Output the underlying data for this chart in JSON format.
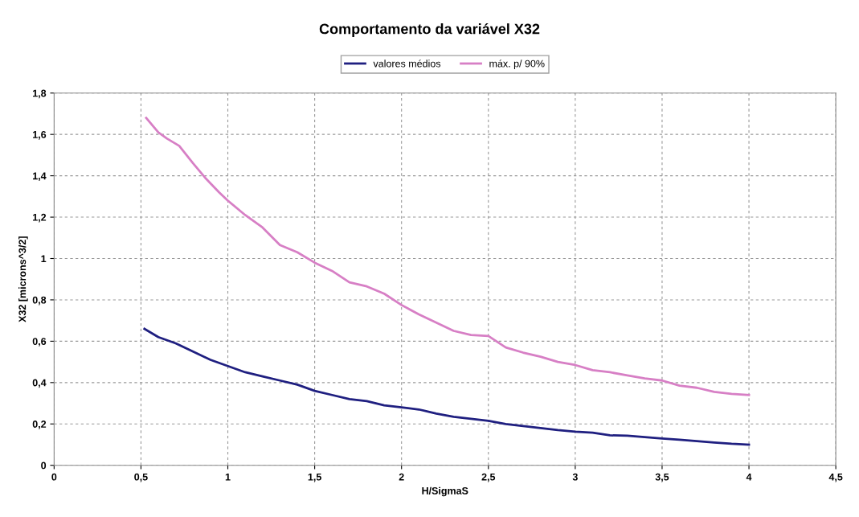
{
  "chart_data": {
    "type": "line",
    "title": "Comportamento da variável X32",
    "xlabel": "H/SigmaS",
    "ylabel": "X32 [microns^3/2]",
    "xlim": [
      0,
      4.5
    ],
    "xticks": [
      0,
      {
        "value": 0.5,
        "label": "0,5"
      },
      1,
      {
        "value": 1.5,
        "label": "1,5"
      },
      2,
      {
        "value": 2.5,
        "label": "2,5"
      },
      3,
      {
        "value": 3.5,
        "label": "3,5"
      },
      4,
      {
        "value": 4.5,
        "label": "4,5"
      }
    ],
    "ylim": [
      0,
      1.8
    ],
    "yticks": [
      0,
      {
        "value": 0.2,
        "label": "0,2"
      },
      {
        "value": 0.4,
        "label": "0,4"
      },
      {
        "value": 0.6,
        "label": "0,6"
      },
      {
        "value": 0.8,
        "label": "0,8"
      },
      1,
      {
        "value": 1.2,
        "label": "1,2"
      },
      {
        "value": 1.4,
        "label": "1,4"
      },
      {
        "value": 1.6,
        "label": "1,6"
      },
      {
        "value": 1.8,
        "label": "1,8"
      }
    ],
    "grid": true,
    "legend": "top",
    "marker": "none",
    "line_style": "solid",
    "series": [
      {
        "name": "valores médios",
        "color": "#1f1f80",
        "x": [
          0.52,
          0.6,
          0.7,
          0.8,
          0.9,
          1.0,
          1.1,
          1.2,
          1.3,
          1.4,
          1.5,
          1.6,
          1.7,
          1.8,
          1.9,
          2.0,
          2.1,
          2.2,
          2.3,
          2.4,
          2.5,
          2.6,
          2.7,
          2.8,
          2.9,
          3.0,
          3.1,
          3.2,
          3.3,
          3.4,
          3.5,
          3.6,
          3.7,
          3.8,
          3.9,
          4.0
        ],
        "values": [
          0.66,
          0.62,
          0.59,
          0.55,
          0.51,
          0.48,
          0.45,
          0.43,
          0.41,
          0.39,
          0.36,
          0.34,
          0.32,
          0.31,
          0.29,
          0.28,
          0.27,
          0.25,
          0.235,
          0.225,
          0.215,
          0.2,
          0.19,
          0.18,
          0.17,
          0.163,
          0.158,
          0.145,
          0.143,
          0.136,
          0.13,
          0.124,
          0.117,
          0.11,
          0.104,
          0.1
        ]
      },
      {
        "name": "máx. p/ 90%",
        "color": "#d77fc5",
        "x": [
          0.53,
          0.6,
          0.65,
          0.72,
          0.8,
          0.87,
          0.95,
          1.0,
          1.1,
          1.2,
          1.3,
          1.4,
          1.5,
          1.6,
          1.7,
          1.8,
          1.9,
          2.0,
          2.1,
          2.2,
          2.3,
          2.4,
          2.5,
          2.6,
          2.7,
          2.8,
          2.9,
          3.0,
          3.1,
          3.2,
          3.3,
          3.4,
          3.5,
          3.6,
          3.7,
          3.8,
          3.9,
          4.0
        ],
        "values": [
          1.68,
          1.61,
          1.58,
          1.545,
          1.46,
          1.39,
          1.32,
          1.28,
          1.21,
          1.15,
          1.065,
          1.03,
          0.98,
          0.94,
          0.885,
          0.865,
          0.83,
          0.775,
          0.73,
          0.69,
          0.65,
          0.63,
          0.625,
          0.57,
          0.545,
          0.525,
          0.5,
          0.485,
          0.46,
          0.45,
          0.435,
          0.42,
          0.41,
          0.385,
          0.375,
          0.355,
          0.345,
          0.34
        ]
      }
    ]
  }
}
